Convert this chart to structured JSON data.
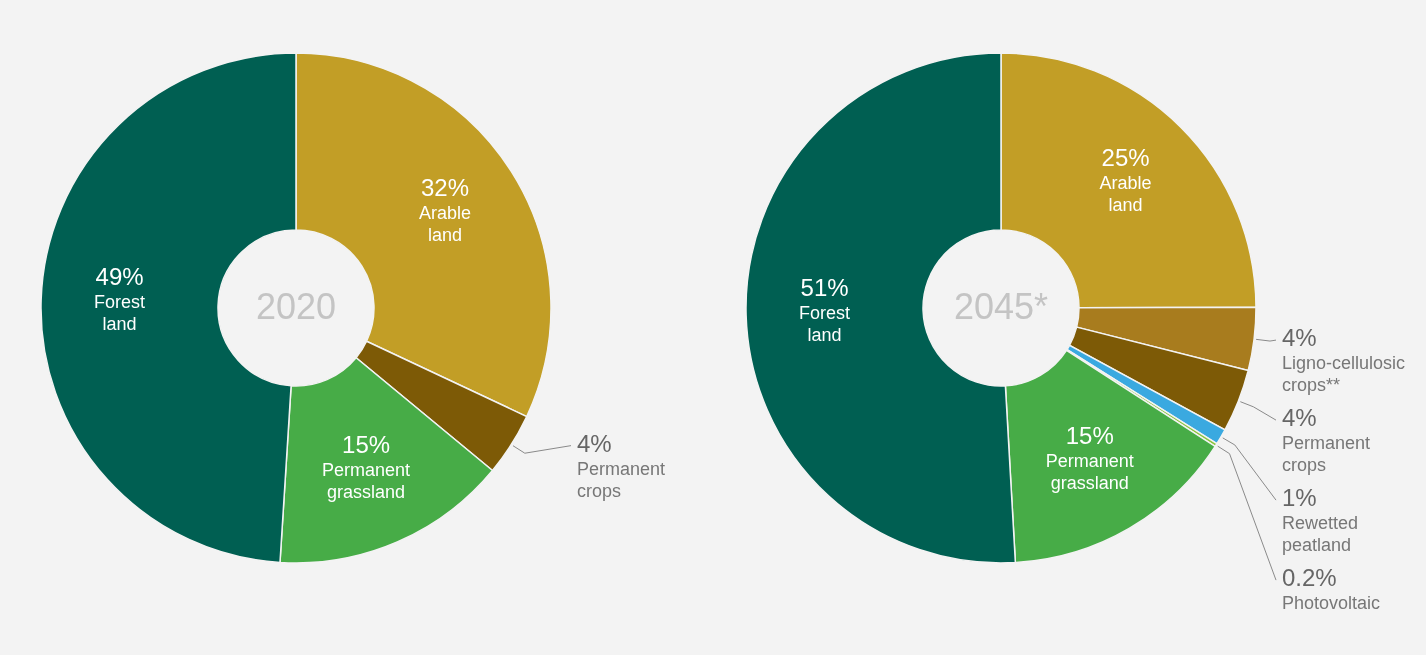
{
  "chart_data": [
    {
      "type": "donut",
      "title": "2020",
      "categories": [
        "Arable land",
        "Permanent crops",
        "Permanent grassland",
        "Forest land"
      ],
      "values": [
        32,
        4,
        15,
        49
      ],
      "value_labels": [
        "32%",
        "4%",
        "15%",
        "49%"
      ],
      "colors": [
        "#c29e26",
        "#7d5a06",
        "#47ac47",
        "#005f52"
      ]
    },
    {
      "type": "donut",
      "title": "2045*",
      "categories": [
        "Arable land",
        "Ligno-cellulosic crops**",
        "Permanent crops",
        "Rewetted peatland",
        "Photovoltaic",
        "Permanent grassland",
        "Forest land"
      ],
      "values": [
        25,
        4,
        4,
        1,
        0.2,
        15,
        51
      ],
      "value_labels": [
        "25%",
        "4%",
        "4%",
        "1%",
        "0.2%",
        "15%",
        "51%"
      ],
      "colors": [
        "#c29e26",
        "#a87c1e",
        "#7d5a06",
        "#3aa9e0",
        "#8cc63f",
        "#47ac47",
        "#005f52"
      ]
    }
  ]
}
